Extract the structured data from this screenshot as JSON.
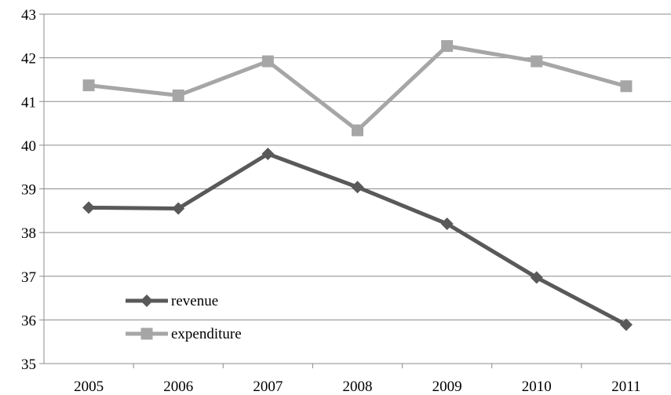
{
  "chart_data": {
    "type": "line",
    "title": "",
    "xlabel": "",
    "ylabel": "",
    "categories": [
      "2005",
      "2006",
      "2007",
      "2008",
      "2009",
      "2010",
      "2011"
    ],
    "ylim": [
      35,
      43
    ],
    "yticks": [
      "35",
      "36",
      "37",
      "38",
      "39",
      "40",
      "41",
      "42",
      "43"
    ],
    "grid": true,
    "legend_position": "bottom-left",
    "series": [
      {
        "name": "revenue",
        "values": [
          38.57,
          38.55,
          39.8,
          39.04,
          38.2,
          36.97,
          35.89
        ],
        "color": "#595959",
        "marker": "diamond"
      },
      {
        "name": "expenditure",
        "values": [
          41.37,
          41.14,
          41.92,
          40.34,
          42.27,
          41.92,
          41.35
        ],
        "color": "#a6a6a6",
        "marker": "square"
      }
    ]
  }
}
